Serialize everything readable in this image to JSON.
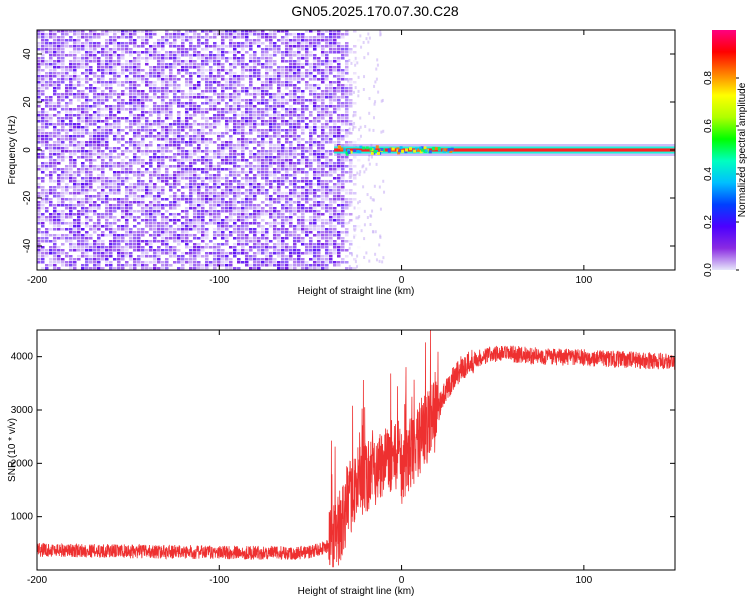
{
  "title": "GN05.2025.170.07.30.C28",
  "chart_data": [
    {
      "type": "heatmap",
      "xlabel": "Height of straight line (km)",
      "ylabel": "Frequency (Hz)",
      "xlim": [
        -200,
        150
      ],
      "ylim": [
        -50,
        50
      ],
      "x_ticks": [
        "-200",
        "-100",
        "0",
        "100"
      ],
      "x_tick_values": [
        -200,
        -100,
        0,
        100
      ],
      "y_ticks": [
        "-40",
        "-20",
        "0",
        "20",
        "40"
      ],
      "y_tick_values": [
        -40,
        -20,
        0,
        20,
        40
      ],
      "colorbar": {
        "label": "Normalized spectral amplitude",
        "range": [
          0,
          1
        ],
        "ticks": [
          "0.0",
          "0.2",
          "0.4",
          "0.6",
          "0.8"
        ],
        "tick_values": [
          0.0,
          0.2,
          0.4,
          0.6,
          0.8
        ],
        "colormap": [
          "#e6e6fa",
          "#8a2be2",
          "#4b00ff",
          "#0040ff",
          "#00bfff",
          "#00ffc0",
          "#00ff00",
          "#b0ff00",
          "#ffff00",
          "#ff8000",
          "#ff0000",
          "#ff0080"
        ]
      },
      "regions": [
        {
          "description": "noise",
          "x_range": [
            -200,
            -30
          ],
          "freq_range": [
            -50,
            50
          ],
          "amplitude": 0.1
        },
        {
          "description": "signal line",
          "x_range": [
            -37,
            150
          ],
          "freq": 0,
          "amplitude": 0.9
        }
      ]
    },
    {
      "type": "line",
      "xlabel": "Height of straight line (km)",
      "ylabel": "SNR (10 * v/v)",
      "xlim": [
        -200,
        150
      ],
      "ylim": [
        0,
        4500
      ],
      "x_ticks": [
        "-200",
        "-100",
        "0",
        "100"
      ],
      "x_tick_values": [
        -200,
        -100,
        0,
        100
      ],
      "y_ticks": [
        "1000",
        "2000",
        "3000",
        "4000"
      ],
      "y_tick_values": [
        1000,
        2000,
        3000,
        4000
      ],
      "color": "#ee3030",
      "series": [
        {
          "x": [
            -200,
            -150,
            -100,
            -60,
            -50,
            -45,
            -40,
            -35,
            -30,
            -25,
            -20,
            -15,
            -10,
            -5,
            0,
            5,
            10,
            15,
            20,
            25,
            30,
            40,
            50,
            60,
            80,
            100,
            120,
            150
          ],
          "values": [
            380,
            350,
            330,
            320,
            340,
            400,
            450,
            700,
            1200,
            1600,
            1700,
            1900,
            2000,
            2200,
            1900,
            2200,
            2500,
            2700,
            3000,
            3400,
            3700,
            3950,
            4050,
            4050,
            4000,
            3980,
            3950,
            3900
          ]
        }
      ]
    }
  ]
}
